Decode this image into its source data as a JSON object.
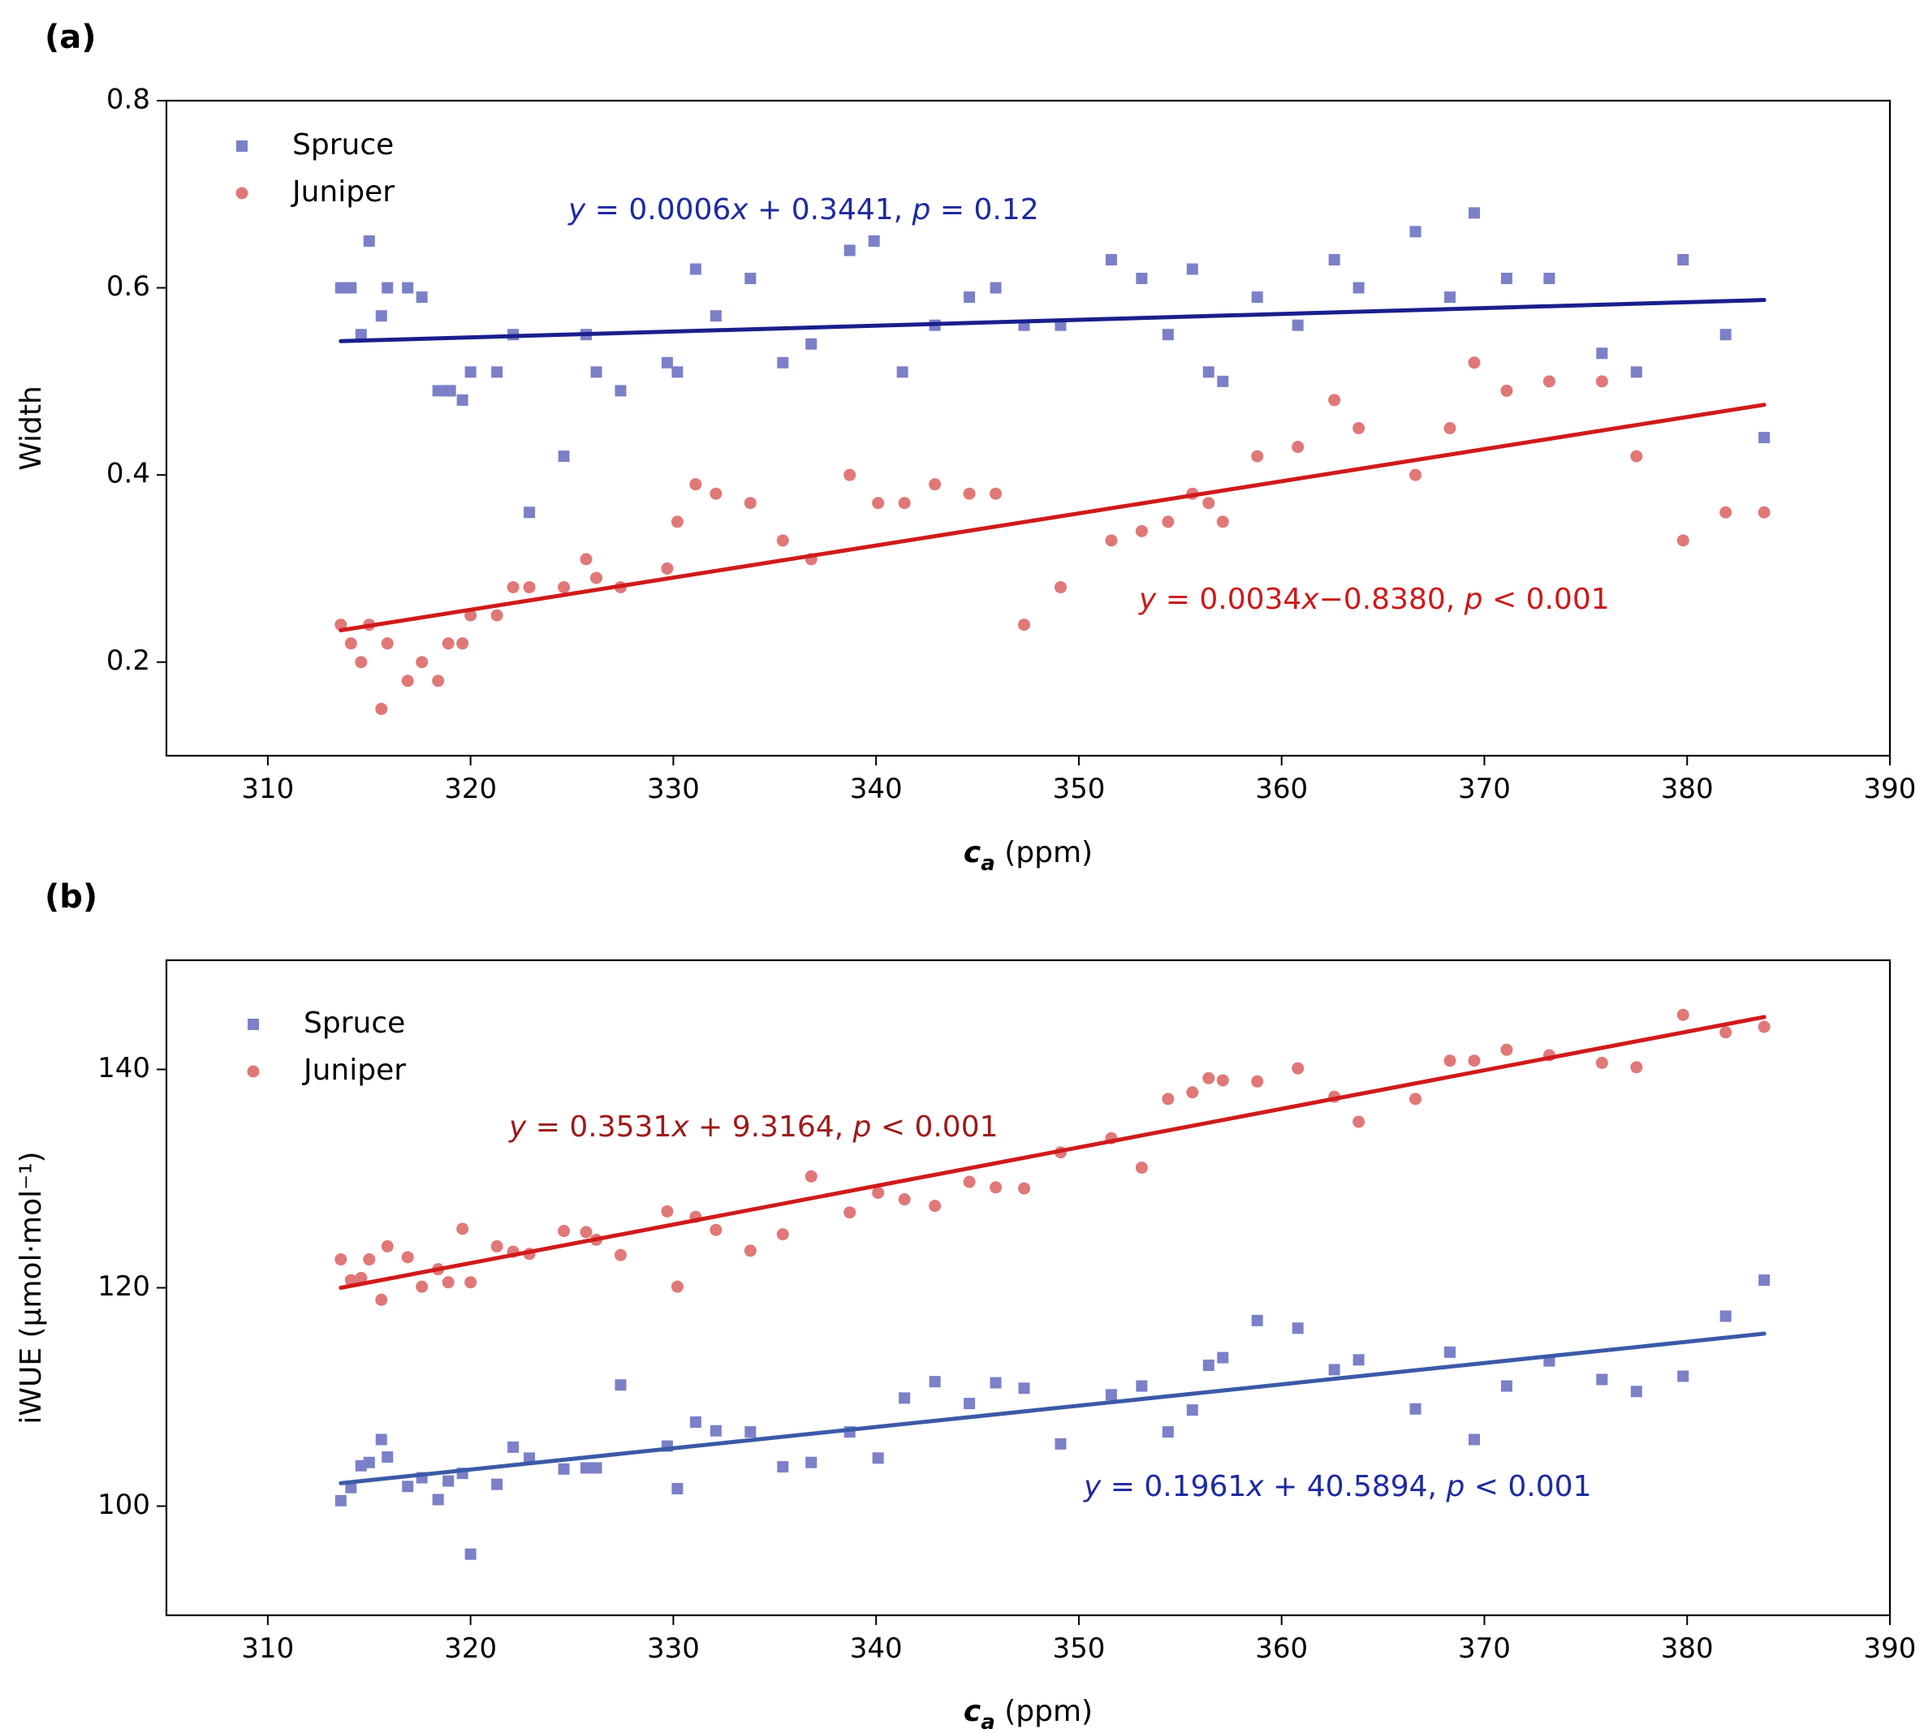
{
  "colors": {
    "spruce_marker": "#7b80c8",
    "juniper_marker": "#e07878",
    "spruce_line_a": "#1a1f8c",
    "spruce_line_b": "#3a5aa8",
    "juniper_line": "#d11a1a",
    "spruce_eq_text": "#1e2aa0",
    "juniper_eq_text_a": "#cc1a1a",
    "juniper_eq_text_b": "#9e1a1a"
  },
  "chart_data": [
    {
      "panel_label": "(a)",
      "type": "scatter",
      "xlabel": {
        "main": "c",
        "subscript": "a",
        "unit": "(ppm)"
      },
      "ylabel": "Width",
      "xlim": [
        305,
        390
      ],
      "ylim": [
        0.1,
        0.8
      ],
      "x_ticks": [
        310,
        320,
        330,
        340,
        350,
        360,
        370,
        380,
        390
      ],
      "y_ticks": [
        0.2,
        0.4,
        0.6,
        0.8
      ],
      "x_tick_labels": [
        "310",
        "320",
        "330",
        "340",
        "350",
        "360",
        "370",
        "380",
        "390"
      ],
      "y_tick_labels": [
        "0.2",
        "0.4",
        "0.6",
        "0.8"
      ],
      "grid": false,
      "legend": {
        "placement": "top-left",
        "entries": [
          "Spruce",
          "Juniper"
        ]
      },
      "series": [
        {
          "name": "Spruce",
          "marker": "square",
          "points": [
            [
              313.6,
              0.6
            ],
            [
              314.1,
              0.6
            ],
            [
              314.6,
              0.55
            ],
            [
              315.0,
              0.65
            ],
            [
              315.6,
              0.57
            ],
            [
              315.9,
              0.6
            ],
            [
              316.9,
              0.6
            ],
            [
              317.6,
              0.59
            ],
            [
              318.4,
              0.49
            ],
            [
              318.9,
              0.49
            ],
            [
              319.0,
              0.49
            ],
            [
              319.6,
              0.48
            ],
            [
              320.0,
              0.51
            ],
            [
              321.3,
              0.51
            ],
            [
              322.1,
              0.55
            ],
            [
              322.9,
              0.36
            ],
            [
              324.6,
              0.42
            ],
            [
              325.7,
              0.55
            ],
            [
              326.2,
              0.51
            ],
            [
              327.4,
              0.49
            ],
            [
              329.7,
              0.52
            ],
            [
              330.2,
              0.51
            ],
            [
              331.1,
              0.62
            ],
            [
              332.1,
              0.57
            ],
            [
              333.8,
              0.61
            ],
            [
              335.4,
              0.52
            ],
            [
              336.8,
              0.54
            ],
            [
              338.7,
              0.64
            ],
            [
              339.9,
              0.65
            ],
            [
              341.3,
              0.51
            ],
            [
              342.9,
              0.56
            ],
            [
              344.6,
              0.59
            ],
            [
              345.9,
              0.6
            ],
            [
              347.3,
              0.56
            ],
            [
              349.1,
              0.56
            ],
            [
              351.6,
              0.63
            ],
            [
              353.1,
              0.61
            ],
            [
              354.4,
              0.55
            ],
            [
              355.6,
              0.62
            ],
            [
              356.4,
              0.51
            ],
            [
              357.1,
              0.5
            ],
            [
              358.8,
              0.59
            ],
            [
              360.8,
              0.56
            ],
            [
              362.6,
              0.63
            ],
            [
              363.8,
              0.6
            ],
            [
              366.6,
              0.66
            ],
            [
              368.3,
              0.59
            ],
            [
              369.5,
              0.68
            ],
            [
              371.1,
              0.61
            ],
            [
              373.2,
              0.61
            ],
            [
              375.8,
              0.53
            ],
            [
              377.5,
              0.51
            ],
            [
              379.8,
              0.63
            ],
            [
              381.9,
              0.55
            ],
            [
              383.8,
              0.44
            ]
          ],
          "fit": {
            "x": [
              313.6,
              383.8
            ],
            "y": [
              0.543,
              0.587
            ]
          },
          "equation": {
            "coef": "0.0006",
            "op": " + ",
            "intercept": "0.3441",
            "p_op": " = ",
            "p_val": "0.12"
          }
        },
        {
          "name": "Juniper",
          "marker": "circle",
          "points": [
            [
              313.6,
              0.24
            ],
            [
              314.1,
              0.22
            ],
            [
              314.6,
              0.2
            ],
            [
              315.0,
              0.24
            ],
            [
              315.6,
              0.15
            ],
            [
              315.9,
              0.22
            ],
            [
              316.9,
              0.18
            ],
            [
              317.6,
              0.2
            ],
            [
              318.4,
              0.18
            ],
            [
              318.9,
              0.22
            ],
            [
              319.6,
              0.22
            ],
            [
              320.0,
              0.25
            ],
            [
              321.3,
              0.25
            ],
            [
              322.1,
              0.28
            ],
            [
              322.9,
              0.28
            ],
            [
              324.6,
              0.28
            ],
            [
              325.7,
              0.31
            ],
            [
              326.2,
              0.29
            ],
            [
              327.4,
              0.28
            ],
            [
              329.7,
              0.3
            ],
            [
              330.2,
              0.35
            ],
            [
              331.1,
              0.39
            ],
            [
              332.1,
              0.38
            ],
            [
              333.8,
              0.37
            ],
            [
              335.4,
              0.33
            ],
            [
              336.8,
              0.31
            ],
            [
              338.7,
              0.4
            ],
            [
              340.1,
              0.37
            ],
            [
              341.4,
              0.37
            ],
            [
              342.9,
              0.39
            ],
            [
              344.6,
              0.38
            ],
            [
              345.9,
              0.38
            ],
            [
              347.3,
              0.24
            ],
            [
              349.1,
              0.28
            ],
            [
              351.6,
              0.33
            ],
            [
              353.1,
              0.34
            ],
            [
              354.4,
              0.35
            ],
            [
              355.6,
              0.38
            ],
            [
              356.4,
              0.37
            ],
            [
              357.1,
              0.35
            ],
            [
              358.8,
              0.42
            ],
            [
              360.8,
              0.43
            ],
            [
              362.6,
              0.48
            ],
            [
              363.8,
              0.45
            ],
            [
              366.6,
              0.4
            ],
            [
              368.3,
              0.45
            ],
            [
              369.5,
              0.52
            ],
            [
              371.1,
              0.49
            ],
            [
              373.2,
              0.5
            ],
            [
              375.8,
              0.5
            ],
            [
              377.5,
              0.42
            ],
            [
              379.8,
              0.33
            ],
            [
              381.9,
              0.36
            ],
            [
              383.8,
              0.36
            ]
          ],
          "fit": {
            "x": [
              313.6,
              383.8
            ],
            "y": [
              0.234,
              0.475
            ]
          },
          "equation": {
            "coef": "0.0034",
            "op": "−",
            "intercept": "0.8380",
            "p_op": " < ",
            "p_val": "0.001"
          }
        }
      ]
    },
    {
      "panel_label": "(b)",
      "type": "scatter",
      "xlabel": {
        "main": "c",
        "subscript": "a",
        "unit": "(ppm)"
      },
      "ylabel": "iWUE (μmol·mol⁻¹)",
      "xlim": [
        305,
        390
      ],
      "ylim": [
        90,
        150
      ],
      "x_ticks": [
        310,
        320,
        330,
        340,
        350,
        360,
        370,
        380,
        390
      ],
      "y_ticks": [
        100,
        120,
        140
      ],
      "x_tick_labels": [
        "310",
        "320",
        "330",
        "340",
        "350",
        "360",
        "370",
        "380",
        "390"
      ],
      "y_tick_labels": [
        "100",
        "120",
        "140"
      ],
      "grid": false,
      "legend": {
        "placement": "top-left",
        "entries": [
          "Spruce",
          "Juniper"
        ]
      },
      "series": [
        {
          "name": "Spruce",
          "marker": "square",
          "points": [
            [
              313.6,
              100.5
            ],
            [
              314.1,
              101.7
            ],
            [
              314.6,
              103.7
            ],
            [
              315.0,
              104.0
            ],
            [
              315.6,
              106.1
            ],
            [
              315.9,
              104.5
            ],
            [
              316.9,
              101.8
            ],
            [
              317.6,
              102.6
            ],
            [
              318.4,
              100.6
            ],
            [
              318.9,
              102.3
            ],
            [
              319.6,
              103.0
            ],
            [
              320.0,
              95.6
            ],
            [
              321.3,
              102.0
            ],
            [
              322.1,
              105.4
            ],
            [
              322.9,
              104.4
            ],
            [
              324.6,
              103.4
            ],
            [
              325.7,
              103.5
            ],
            [
              326.2,
              103.5
            ],
            [
              327.4,
              111.1
            ],
            [
              329.7,
              105.5
            ],
            [
              330.2,
              101.6
            ],
            [
              331.1,
              107.7
            ],
            [
              332.1,
              106.9
            ],
            [
              333.8,
              106.8
            ],
            [
              335.4,
              103.6
            ],
            [
              336.8,
              104.0
            ],
            [
              338.7,
              106.8
            ],
            [
              340.1,
              104.4
            ],
            [
              341.4,
              109.9
            ],
            [
              342.9,
              111.4
            ],
            [
              344.6,
              109.4
            ],
            [
              345.9,
              111.3
            ],
            [
              347.3,
              110.8
            ],
            [
              349.1,
              105.7
            ],
            [
              351.6,
              110.2
            ],
            [
              353.1,
              111.0
            ],
            [
              354.4,
              106.8
            ],
            [
              355.6,
              108.8
            ],
            [
              356.4,
              112.9
            ],
            [
              357.1,
              113.6
            ],
            [
              358.8,
              117.0
            ],
            [
              360.8,
              116.3
            ],
            [
              362.6,
              112.5
            ],
            [
              363.8,
              113.4
            ],
            [
              366.6,
              108.9
            ],
            [
              368.3,
              114.1
            ],
            [
              369.5,
              106.1
            ],
            [
              371.1,
              111.0
            ],
            [
              373.2,
              113.3
            ],
            [
              375.8,
              111.6
            ],
            [
              377.5,
              110.5
            ],
            [
              379.8,
              111.9
            ],
            [
              381.9,
              117.4
            ],
            [
              383.8,
              120.7
            ]
          ],
          "fit": {
            "x": [
              313.6,
              383.8
            ],
            "y": [
              102.1,
              115.8
            ]
          },
          "equation": {
            "coef": "0.1961",
            "op": " + ",
            "intercept": "40.5894",
            "p_op": " < ",
            "p_val": "0.001"
          }
        },
        {
          "name": "Juniper",
          "marker": "circle",
          "points": [
            [
              313.6,
              122.6
            ],
            [
              314.1,
              120.7
            ],
            [
              314.6,
              120.9
            ],
            [
              315.0,
              122.6
            ],
            [
              315.6,
              118.9
            ],
            [
              315.9,
              123.8
            ],
            [
              316.9,
              122.8
            ],
            [
              317.6,
              120.1
            ],
            [
              318.4,
              121.7
            ],
            [
              318.9,
              120.5
            ],
            [
              319.6,
              125.4
            ],
            [
              320.0,
              120.5
            ],
            [
              321.3,
              123.8
            ],
            [
              322.1,
              123.3
            ],
            [
              322.9,
              123.1
            ],
            [
              324.6,
              125.2
            ],
            [
              325.7,
              125.1
            ],
            [
              326.2,
              124.4
            ],
            [
              327.4,
              123.0
            ],
            [
              329.7,
              127.0
            ],
            [
              330.2,
              120.1
            ],
            [
              331.1,
              126.5
            ],
            [
              332.1,
              125.3
            ],
            [
              333.8,
              123.4
            ],
            [
              335.4,
              124.9
            ],
            [
              336.8,
              130.2
            ],
            [
              338.7,
              126.9
            ],
            [
              340.1,
              128.7
            ],
            [
              341.4,
              128.1
            ],
            [
              342.9,
              127.5
            ],
            [
              344.6,
              129.7
            ],
            [
              345.9,
              129.2
            ],
            [
              347.3,
              129.1
            ],
            [
              349.1,
              132.4
            ],
            [
              351.6,
              133.7
            ],
            [
              353.1,
              131.0
            ],
            [
              354.4,
              137.3
            ],
            [
              355.6,
              137.9
            ],
            [
              356.4,
              139.2
            ],
            [
              357.1,
              139.0
            ],
            [
              358.8,
              138.9
            ],
            [
              360.8,
              140.1
            ],
            [
              362.6,
              137.5
            ],
            [
              363.8,
              135.2
            ],
            [
              366.6,
              137.3
            ],
            [
              368.3,
              140.8
            ],
            [
              369.5,
              140.8
            ],
            [
              371.1,
              141.8
            ],
            [
              373.2,
              141.3
            ],
            [
              375.8,
              140.6
            ],
            [
              377.5,
              140.2
            ],
            [
              379.8,
              145.0
            ],
            [
              381.9,
              143.4
            ],
            [
              383.8,
              143.9
            ]
          ],
          "fit": {
            "x": [
              313.6,
              383.8
            ],
            "y": [
              120.0,
              144.8
            ]
          },
          "equation": {
            "coef": "0.3531",
            "op": " + ",
            "intercept": "9.3164",
            "p_op": " < ",
            "p_val": "0.001"
          }
        }
      ]
    }
  ]
}
